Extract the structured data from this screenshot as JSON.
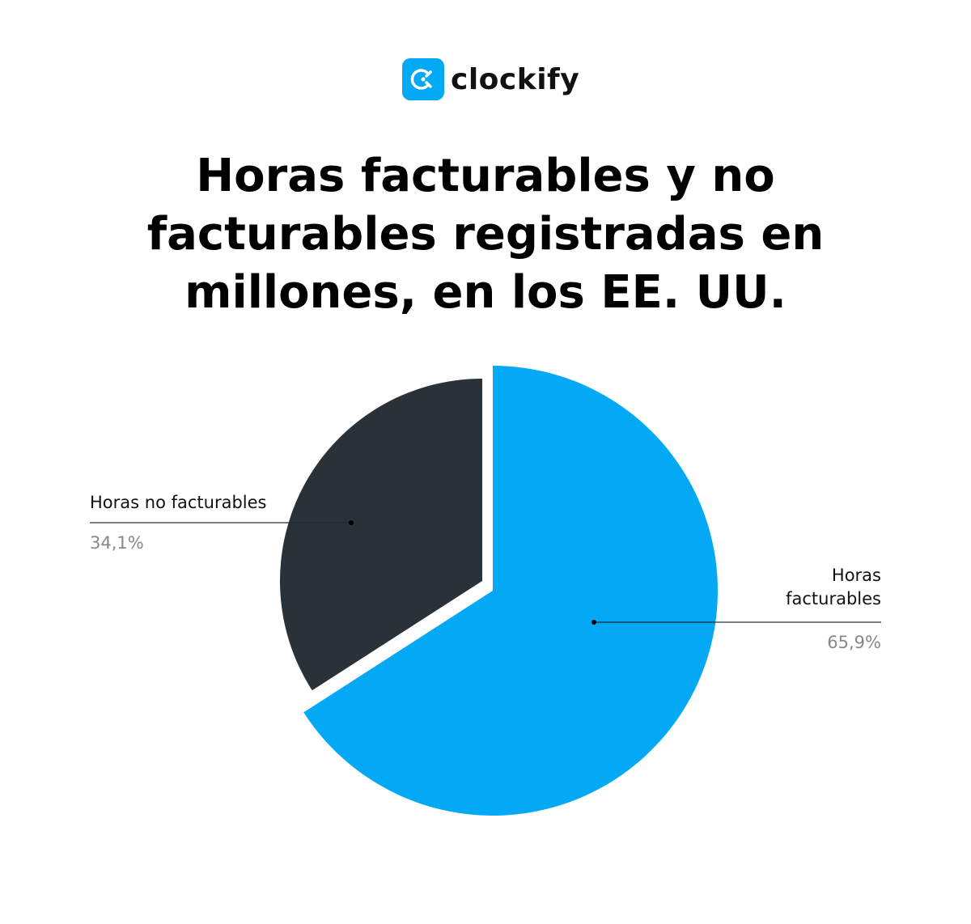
{
  "logo": {
    "text": "clockify",
    "icon": "clockify-logo-icon",
    "color": "#03a9f4"
  },
  "chart_data": {
    "type": "pie",
    "title": [
      "Horas facturables y no",
      "facturables registradas en",
      "millones, en los EE. UU."
    ],
    "slices": [
      {
        "label": "Horas facturables",
        "value": 65.9,
        "value_label": "65,9%",
        "color": "#03a9f4"
      },
      {
        "label": "Horas no facturables",
        "value": 34.1,
        "value_label": "34,1%",
        "color": "#283238",
        "exploded": true
      }
    ],
    "legend": "none"
  }
}
